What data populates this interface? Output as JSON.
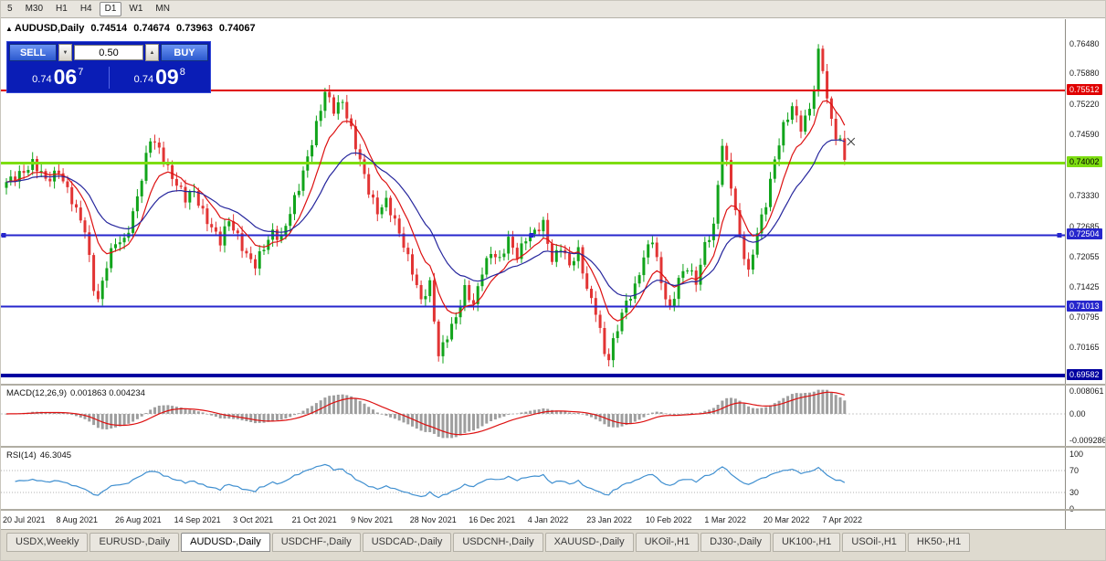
{
  "toolbar": {
    "timeframes": [
      "5",
      "M30",
      "H1",
      "H4",
      "D1",
      "W1",
      "MN"
    ],
    "active_timeframe": "D1"
  },
  "chart_header": {
    "marker": "▲",
    "symbol": "AUDUSD,Daily",
    "open": "0.74514",
    "high": "0.74674",
    "low": "0.73963",
    "close": "0.74067"
  },
  "trade_panel": {
    "sell_label": "SELL",
    "buy_label": "BUY",
    "volume": "0.50",
    "sell_price": {
      "base": "0.74",
      "big": "06",
      "sup": "7"
    },
    "buy_price": {
      "base": "0.74",
      "big": "09",
      "sup": "8"
    }
  },
  "price_axis": {
    "ticks": [
      "0.76480",
      "0.75880",
      "0.75220",
      "0.74590",
      "0.73330",
      "0.72685",
      "0.72055",
      "0.71425",
      "0.70795",
      "0.70165"
    ],
    "badges": [
      {
        "label": "0.75512",
        "bg": "#e00000",
        "fg": "#ffffff"
      },
      {
        "label": "0.74002",
        "bg": "#7ddd11",
        "fg": "#000000"
      },
      {
        "label": "0.72504",
        "bg": "#2626cc",
        "fg": "#ffffff"
      },
      {
        "label": "0.71013",
        "bg": "#2626cc",
        "fg": "#ffffff"
      },
      {
        "label": "0.69582",
        "bg": "#0000a0",
        "fg": "#ffffff"
      }
    ]
  },
  "indicators": {
    "macd": {
      "label": "MACD(12,26,9)",
      "values": "0.001863 0.004234",
      "axis": [
        "0.008061",
        "0.00",
        "-0.009286"
      ]
    },
    "rsi": {
      "label": "RSI(14)",
      "value": "46.3045",
      "axis": [
        "100",
        "70",
        "30",
        "0"
      ]
    }
  },
  "date_axis": [
    "20 Jul 2021",
    "8 Aug 2021",
    "26 Aug 2021",
    "14 Sep 2021",
    "3 Oct 2021",
    "21 Oct 2021",
    "9 Nov 2021",
    "28 Nov 2021",
    "16 Dec 2021",
    "4 Jan 2022",
    "23 Jan 2022",
    "10 Feb 2022",
    "1 Mar 2022",
    "20 Mar 2022",
    "7 Apr 2022"
  ],
  "tabs": {
    "active": "AUDUSD-,Daily",
    "items": [
      "USDX,Weekly",
      "EURUSD-,Daily",
      "AUDUSD-,Daily",
      "USDCHF-,Daily",
      "USDCAD-,Daily",
      "USDCNH-,Daily",
      "XAUUSD-,Daily",
      "UKOil-,H1",
      "DJ30-,Daily",
      "UK100-,H1",
      "USOil-,H1",
      "HK50-,H1"
    ],
    "note": ""
  },
  "chart_data": {
    "type": "candlestick",
    "symbol": "AUDUSD",
    "timeframe": "Daily",
    "current": {
      "open": 0.74514,
      "high": 0.74674,
      "low": 0.73963,
      "close": 0.74067,
      "bid": 0.74067,
      "ask": 0.74098
    },
    "y_axis": {
      "min": 0.69582,
      "max": 0.7648
    },
    "bars_total": 193,
    "close_waypoints": [
      [
        0,
        0.7355
      ],
      [
        3,
        0.7382
      ],
      [
        6,
        0.7398
      ],
      [
        9,
        0.7362
      ],
      [
        12,
        0.739
      ],
      [
        14,
        0.7342
      ],
      [
        16,
        0.7295
      ],
      [
        18,
        0.7262
      ],
      [
        20,
        0.7148
      ],
      [
        21,
        0.7118
      ],
      [
        23,
        0.7185
      ],
      [
        25,
        0.7232
      ],
      [
        27,
        0.7242
      ],
      [
        29,
        0.7298
      ],
      [
        31,
        0.7365
      ],
      [
        33,
        0.7448
      ],
      [
        35,
        0.7432
      ],
      [
        37,
        0.7392
      ],
      [
        39,
        0.7352
      ],
      [
        41,
        0.7322
      ],
      [
        43,
        0.7345
      ],
      [
        45,
        0.7302
      ],
      [
        47,
        0.7262
      ],
      [
        49,
        0.7232
      ],
      [
        51,
        0.7285
      ],
      [
        53,
        0.7252
      ],
      [
        55,
        0.7205
      ],
      [
        57,
        0.7182
      ],
      [
        59,
        0.7228
      ],
      [
        61,
        0.7262
      ],
      [
        63,
        0.7242
      ],
      [
        65,
        0.7292
      ],
      [
        67,
        0.7352
      ],
      [
        69,
        0.7418
      ],
      [
        71,
        0.7478
      ],
      [
        73,
        0.7542
      ],
      [
        75,
        0.7512
      ],
      [
        77,
        0.7535
      ],
      [
        79,
        0.7468
      ],
      [
        81,
        0.7398
      ],
      [
        83,
        0.7342
      ],
      [
        85,
        0.7305
      ],
      [
        87,
        0.7322
      ],
      [
        89,
        0.7272
      ],
      [
        91,
        0.7228
      ],
      [
        93,
        0.7182
      ],
      [
        95,
        0.7115
      ],
      [
        97,
        0.7142
      ],
      [
        99,
        0.6998
      ],
      [
        101,
        0.7048
      ],
      [
        103,
        0.7082
      ],
      [
        105,
        0.7132
      ],
      [
        107,
        0.7102
      ],
      [
        109,
        0.7182
      ],
      [
        111,
        0.7218
      ],
      [
        113,
        0.7192
      ],
      [
        115,
        0.7238
      ],
      [
        117,
        0.7212
      ],
      [
        119,
        0.7248
      ],
      [
        121,
        0.7252
      ],
      [
        123,
        0.727
      ],
      [
        125,
        0.7202
      ],
      [
        127,
        0.7232
      ],
      [
        129,
        0.7182
      ],
      [
        131,
        0.7212
      ],
      [
        133,
        0.7142
      ],
      [
        135,
        0.7098
      ],
      [
        137,
        0.7002
      ],
      [
        138,
        0.6988
      ],
      [
        140,
        0.7058
      ],
      [
        142,
        0.7118
      ],
      [
        144,
        0.7142
      ],
      [
        146,
        0.7198
      ],
      [
        148,
        0.7242
      ],
      [
        150,
        0.7158
      ],
      [
        152,
        0.7095
      ],
      [
        154,
        0.7152
      ],
      [
        156,
        0.7182
      ],
      [
        158,
        0.7158
      ],
      [
        160,
        0.7232
      ],
      [
        162,
        0.7262
      ],
      [
        164,
        0.7438
      ],
      [
        166,
        0.736
      ],
      [
        168,
        0.725
      ],
      [
        170,
        0.7165
      ],
      [
        172,
        0.7252
      ],
      [
        174,
        0.7322
      ],
      [
        176,
        0.7412
      ],
      [
        178,
        0.7472
      ],
      [
        180,
        0.7512
      ],
      [
        182,
        0.7478
      ],
      [
        184,
        0.7515
      ],
      [
        185,
        0.7552
      ],
      [
        186,
        0.7635
      ],
      [
        187,
        0.7592
      ],
      [
        188,
        0.7532
      ],
      [
        190,
        0.7452
      ],
      [
        191,
        0.74514
      ],
      [
        192,
        0.74067
      ]
    ],
    "moving_averages": [
      {
        "type": "ema",
        "period": 9,
        "color": "#dd1111"
      },
      {
        "type": "ema",
        "period": 22,
        "color": "#26269d"
      }
    ],
    "horizontal_lines": [
      {
        "price": 0.75512,
        "color": "#e00000",
        "width": 2
      },
      {
        "price": 0.74002,
        "color": "#7ddd11",
        "width": 3
      },
      {
        "price": 0.72504,
        "color": "#2626cc",
        "width": 2,
        "selected": true
      },
      {
        "price": 0.71013,
        "color": "#2626cc",
        "width": 2
      },
      {
        "price": 0.69582,
        "color": "#0000a0",
        "width": 4
      }
    ],
    "colors": {
      "up": "#11a41b",
      "down": "#e23434",
      "macd_hist": "#9e9e9e",
      "macd_signal": "#dd1111",
      "rsi_line": "#3f8fd0"
    },
    "macd": {
      "fast": 12,
      "slow": 26,
      "signal": 9,
      "axis_max": 0.008061,
      "axis_min": -0.009286
    },
    "rsi": {
      "period": 14,
      "levels": [
        70,
        30
      ],
      "current": 46.3045
    }
  }
}
